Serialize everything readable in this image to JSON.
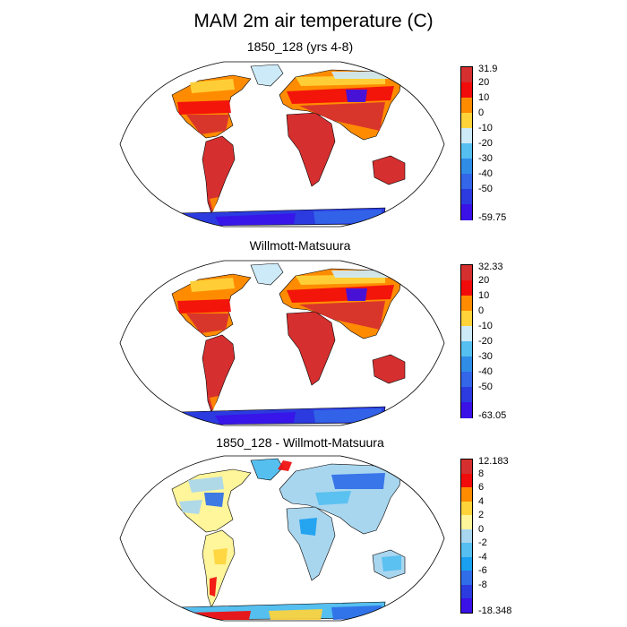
{
  "title": "MAM 2m air temperature (C)",
  "panels": [
    {
      "title": "1850_128 (yrs 4-8)",
      "colorbar": {
        "labels": [
          "31.9",
          "20",
          "10",
          "0",
          "-10",
          "-20",
          "-30",
          "-40",
          "-50",
          "-59.75"
        ],
        "colors": [
          "#d62f2f",
          "#f20b0b",
          "#ff8c00",
          "#ffd43b",
          "#cdeaf8",
          "#55bff0",
          "#2f8de8",
          "#3366e8",
          "#2b3be0",
          "#3a12e8"
        ]
      }
    },
    {
      "title": "Willmott-Matsuura",
      "colorbar": {
        "labels": [
          "32.33",
          "20",
          "10",
          "0",
          "-10",
          "-20",
          "-30",
          "-40",
          "-50",
          "-63.05"
        ],
        "colors": [
          "#d62f2f",
          "#f20b0b",
          "#ff8c00",
          "#ffd43b",
          "#cdeaf8",
          "#55bff0",
          "#2f8de8",
          "#3366e8",
          "#2b3be0",
          "#3a12e8"
        ]
      }
    },
    {
      "title": "1850_128 - Willmott-Matsuura",
      "colorbar": {
        "labels": [
          "12.183",
          "8",
          "6",
          "4",
          "2",
          "0",
          "-2",
          "-4",
          "-6",
          "-8",
          "-18.348"
        ],
        "colors": [
          "#d62f2f",
          "#f20b0b",
          "#ff8c00",
          "#ffd43b",
          "#fff59a",
          "#a9d6ef",
          "#55bff0",
          "#1aa0f0",
          "#2f6ee8",
          "#2b3be0",
          "#3a12e8"
        ]
      }
    }
  ]
}
